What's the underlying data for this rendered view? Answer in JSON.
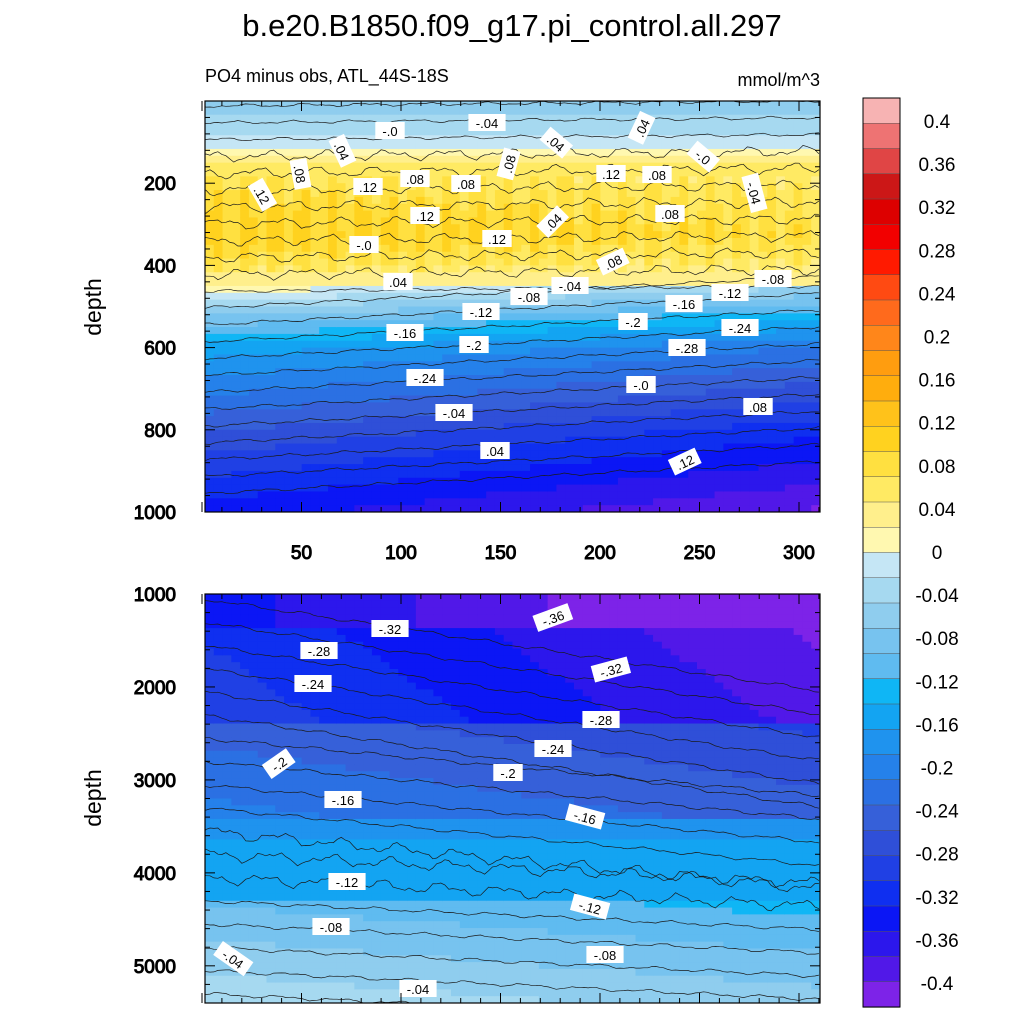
{
  "title": "b.e20.B1850.f09_g17.pi_control.all.297",
  "chart_data": {
    "type": "heatmap",
    "variable": "PO4 minus obs, ATL_44S-18S",
    "units": "mmol/m^3",
    "colorbar": {
      "levels": [
        -0.4,
        -0.36,
        -0.32,
        -0.28,
        -0.24,
        -0.2,
        -0.16,
        -0.12,
        -0.08,
        -0.04,
        0,
        0.04,
        0.08,
        0.12,
        0.16,
        0.2,
        0.24,
        0.28,
        0.32,
        0.36,
        0.4
      ],
      "tick_labels": [
        "0.4",
        "0.36",
        "0.32",
        "0.28",
        "0.24",
        "0.2",
        "0.16",
        "0.12",
        "0.08",
        "0.04",
        "0",
        "-0.04",
        "-0.08",
        "-0.12",
        "-0.16",
        "-0.2",
        "-0.24",
        "-0.28",
        "-0.32",
        "-0.36",
        "-0.4"
      ],
      "colors_top_to_bottom": [
        "#f7b3b3",
        "#ee7373",
        "#e04545",
        "#cc1717",
        "#dd0000",
        "#f20000",
        "#ff1a00",
        "#ff4a12",
        "#ff6a1c",
        "#ff861a",
        "#ff9d0f",
        "#ffad0d",
        "#ffc21a",
        "#ffd21f",
        "#ffe040",
        "#ffea63",
        "#ffef8c",
        "#fff8b0",
        "#c5e6f5",
        "#a6d9f0",
        "#8fcdee",
        "#77c3ef",
        "#5fbbf0",
        "#0fb6f5",
        "#13a4f2",
        "#1f93ee",
        "#2581ea",
        "#2b70e3",
        "#3660d9",
        "#2f4fd8",
        "#2040e4",
        "#0f2ff0",
        "#0b16f5",
        "#2c17ec",
        "#5118e8",
        "#7d23e8"
      ]
    },
    "panels": [
      {
        "name": "upper",
        "x_ticks": [
          "50",
          "100",
          "150",
          "200",
          "250",
          "300"
        ],
        "y_label": "depth",
        "y_ticks": [
          "200",
          "400",
          "600",
          "800",
          "1000"
        ],
        "y_range": [
          0,
          1000
        ],
        "contour_labels": [
          ".12",
          ".08",
          ".04",
          "-.0",
          "-.04",
          ".12",
          ".08",
          ".12",
          ".08",
          ".08",
          ".04",
          ".12",
          ".08",
          ".12",
          ".04",
          ".08",
          ".08",
          ".04",
          "-.0",
          "-.04",
          "-.0",
          ".04",
          "-.04",
          "-.08",
          "-.08",
          "-.12",
          "-.12",
          "-.16",
          "-.16",
          "-.2",
          "-.2",
          "-.24",
          "-.24",
          "-.28",
          "-.04",
          "-.0",
          ".04",
          ".08",
          ".12",
          ".04",
          "-.04",
          "-.0"
        ]
      },
      {
        "name": "lower",
        "y_label": "depth",
        "y_ticks": [
          "1000",
          "2000",
          "3000",
          "4000",
          "5000"
        ],
        "y_range": [
          1000,
          5400
        ],
        "contour_labels": [
          "-.32",
          "-.36",
          "-.28",
          "-.32",
          "-.24",
          "-.28",
          "-.24",
          "-.2",
          "-.2",
          "-.16",
          "-.16",
          "-.12",
          "-.12",
          "-.08",
          "-.08",
          "-.04",
          "-.04"
        ]
      }
    ]
  }
}
